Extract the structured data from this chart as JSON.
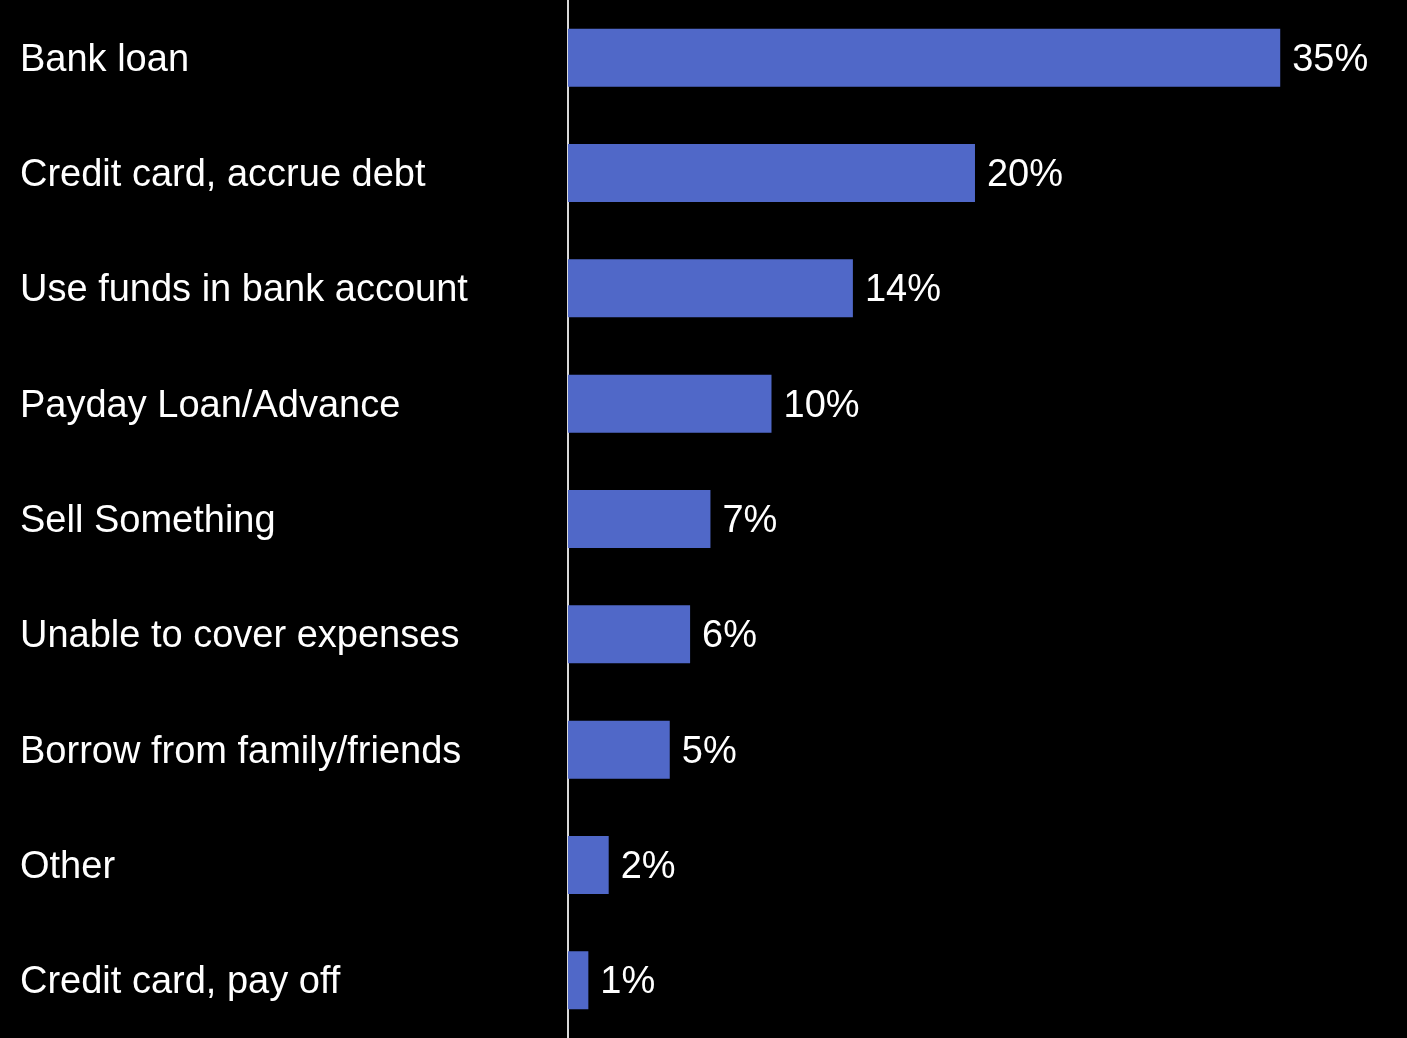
{
  "chart_data": {
    "type": "bar",
    "orientation": "horizontal",
    "relative": false,
    "categories": [
      "Bank loan",
      "Credit card, accrue debt",
      "Use funds in bank account",
      "Payday Loan/Advance",
      "Sell Something",
      "Unable to cover expenses",
      "Borrow from family/friends",
      "Other",
      "Credit card, pay off"
    ],
    "values": [
      35,
      20,
      14,
      10,
      7,
      6,
      5,
      2,
      1
    ],
    "value_labels": [
      "35%",
      "20%",
      "14%",
      "10%",
      "7%",
      "6%",
      "5%",
      "2%",
      "1%"
    ],
    "color": "#5068c8",
    "tick_labels": "y"
  }
}
